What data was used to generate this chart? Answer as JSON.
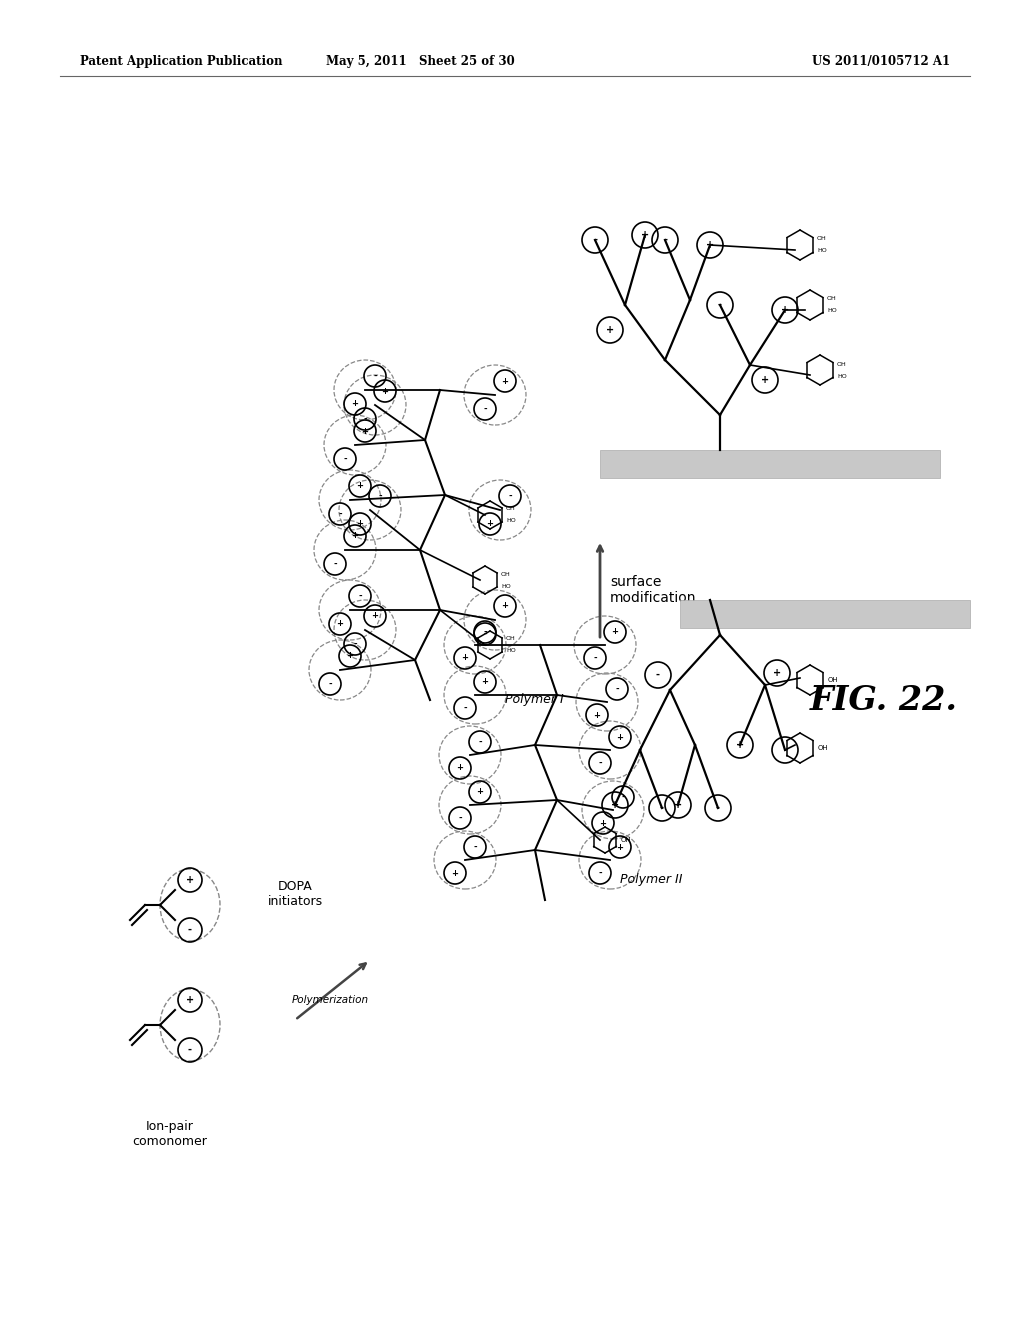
{
  "header_left": "Patent Application Publication",
  "header_mid": "May 5, 2011   Sheet 25 of 30",
  "header_right": "US 2011/0105712 A1",
  "fig_label": "FIG. 22.",
  "bg_color": "#ffffff",
  "text_color": "#000000",
  "label_ionpair": "Ion-pair\ncomonomer",
  "label_dopa": "DOPA\ninitiators",
  "label_polymerization": "Polymerization",
  "label_polymer1": "Polymer I",
  "label_polymer2": "Polymer II",
  "label_surface": "surface\nmodification",
  "arrow_color": "#444444",
  "line_color": "#000000",
  "dashed_color": "#888888",
  "gray_rect_color": "#c8c8c8"
}
